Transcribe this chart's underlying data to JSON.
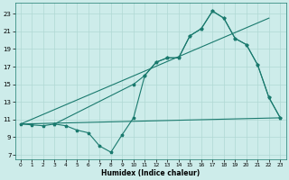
{
  "xlabel": "Humidex (Indice chaleur)",
  "xlim": [
    -0.5,
    23.5
  ],
  "ylim": [
    6.5,
    24.2
  ],
  "xticks": [
    0,
    1,
    2,
    3,
    4,
    5,
    6,
    7,
    8,
    9,
    10,
    11,
    12,
    13,
    14,
    15,
    16,
    17,
    18,
    19,
    20,
    21,
    22,
    23
  ],
  "yticks": [
    7,
    9,
    11,
    13,
    15,
    17,
    19,
    21,
    23
  ],
  "bg_color": "#cdecea",
  "grid_color": "#b0d8d4",
  "line_color": "#1a7a6e",
  "line1_x": [
    0,
    1,
    2,
    3,
    4,
    5,
    6,
    7,
    8,
    9,
    10,
    11,
    12,
    13,
    14,
    15,
    16,
    17,
    18,
    19,
    20,
    21,
    22,
    23
  ],
  "line1_y": [
    10.5,
    10.4,
    10.3,
    10.5,
    10.3,
    9.8,
    9.5,
    8.0,
    7.3,
    9.3,
    11.2,
    16.0,
    17.5,
    18.0,
    18.0,
    20.5,
    21.3,
    23.3,
    22.5,
    20.2,
    19.5,
    17.2,
    13.5,
    11.2
  ],
  "line2_x": [
    0,
    22
  ],
  "line2_y": [
    10.5,
    22.5
  ],
  "line3_x": [
    0,
    23
  ],
  "line3_y": [
    10.5,
    11.2
  ],
  "line4_x": [
    3,
    10,
    11,
    12,
    13,
    14,
    15,
    16,
    17,
    18,
    19,
    20,
    21,
    22,
    23
  ],
  "line4_y": [
    10.5,
    15.0,
    16.0,
    17.5,
    18.0,
    18.0,
    20.5,
    21.3,
    23.3,
    22.5,
    20.2,
    19.5,
    17.2,
    13.5,
    11.2
  ]
}
